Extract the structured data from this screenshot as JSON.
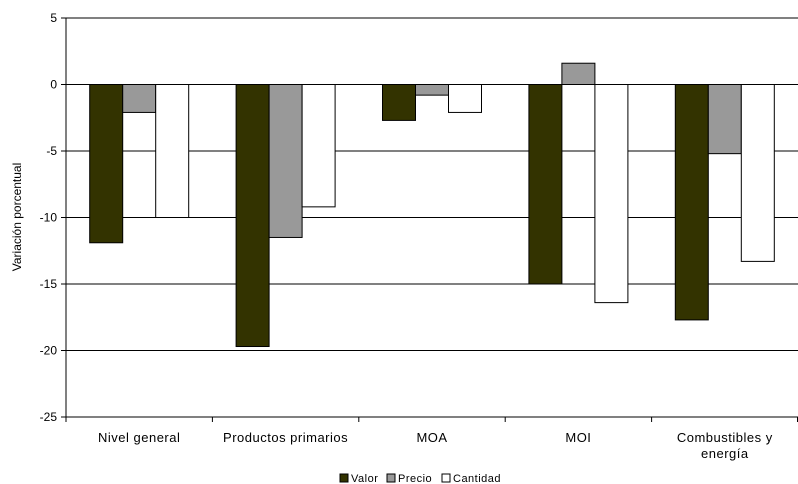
{
  "chart_data": {
    "type": "bar",
    "categories": [
      "Nivel general",
      "Productos primarios",
      "MOA",
      "MOI",
      "Combustibles y energía"
    ],
    "category_lines": [
      [
        "Nivel general"
      ],
      [
        "Productos primarios"
      ],
      [
        "MOA"
      ],
      [
        "MOI"
      ],
      [
        "Combustibles y",
        "energía"
      ]
    ],
    "series": [
      {
        "name": "Valor",
        "color": "#333300",
        "values": [
          -11.9,
          -19.7,
          -2.7,
          -15.0,
          -17.7
        ]
      },
      {
        "name": "Precio",
        "color": "#999999",
        "values": [
          -2.1,
          -11.5,
          -0.8,
          1.6,
          -5.2
        ]
      },
      {
        "name": "Cantidad",
        "color": "#ffffff",
        "values": [
          -10.0,
          -9.2,
          -2.1,
          -16.4,
          -13.3
        ]
      }
    ],
    "ylabel": "Variación porcentual",
    "ylim": [
      -25,
      5
    ],
    "yticks": [
      -25,
      -20,
      -15,
      -10,
      -5,
      0,
      5
    ],
    "grid": true,
    "legend_position": "bottom"
  }
}
